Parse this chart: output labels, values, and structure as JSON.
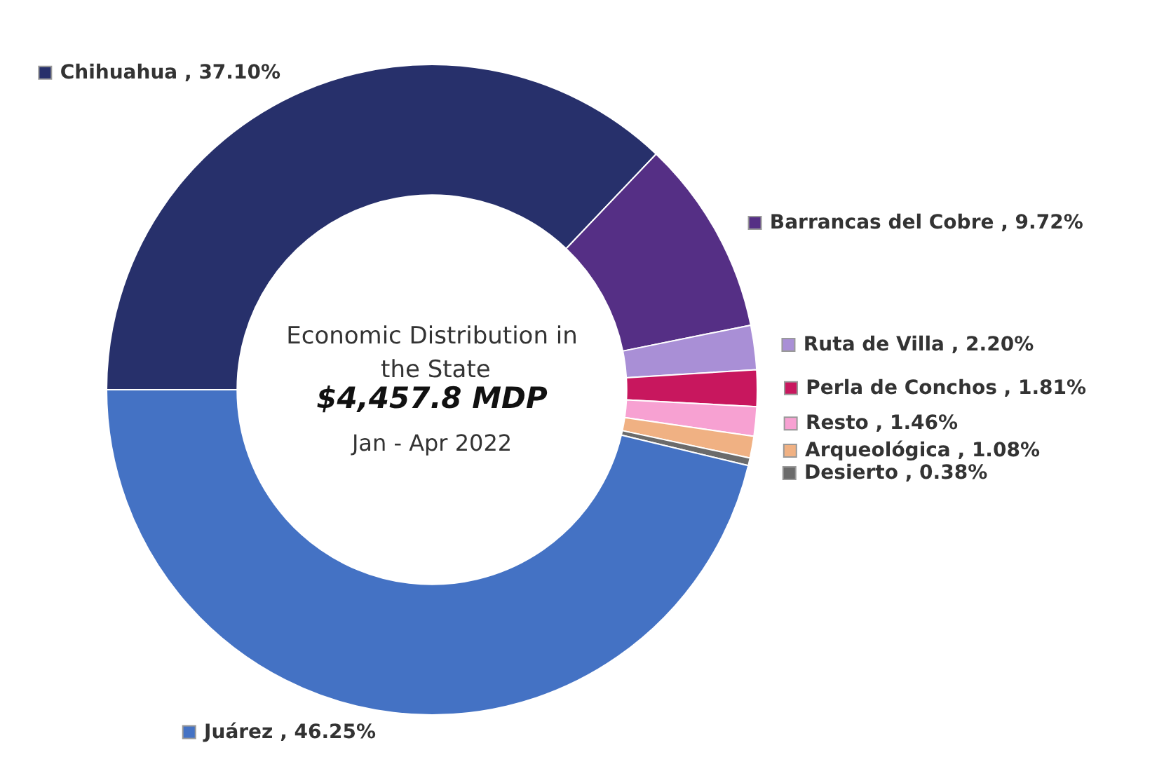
{
  "chart_data": {
    "type": "donut",
    "title": "Economic Distribution in the State",
    "subtitle": "$4,457.8 MDP",
    "annotations": [
      "Jan - Apr 2022"
    ],
    "categories": [
      "Chihuahua",
      "Barrancas del Cobre",
      "Ruta de Villa",
      "Perla de Conchos",
      "Resto",
      "Arqueológica",
      "Desierto",
      "Juárez"
    ],
    "values": [
      37.1,
      9.72,
      2.2,
      1.81,
      1.46,
      1.08,
      0.38,
      46.25
    ],
    "value_labels": [
      "37.10%",
      "9.72%",
      "2.20%",
      "1.81%",
      "1.46%",
      "1.08%",
      "0.38%",
      "46.25%"
    ],
    "colors": [
      "#27306b",
      "#552f85",
      "#a98fd6",
      "#c8175e",
      "#f7a1d2",
      "#f0b183",
      "#6b6b6b",
      "#4472c4"
    ],
    "legend": "right"
  }
}
